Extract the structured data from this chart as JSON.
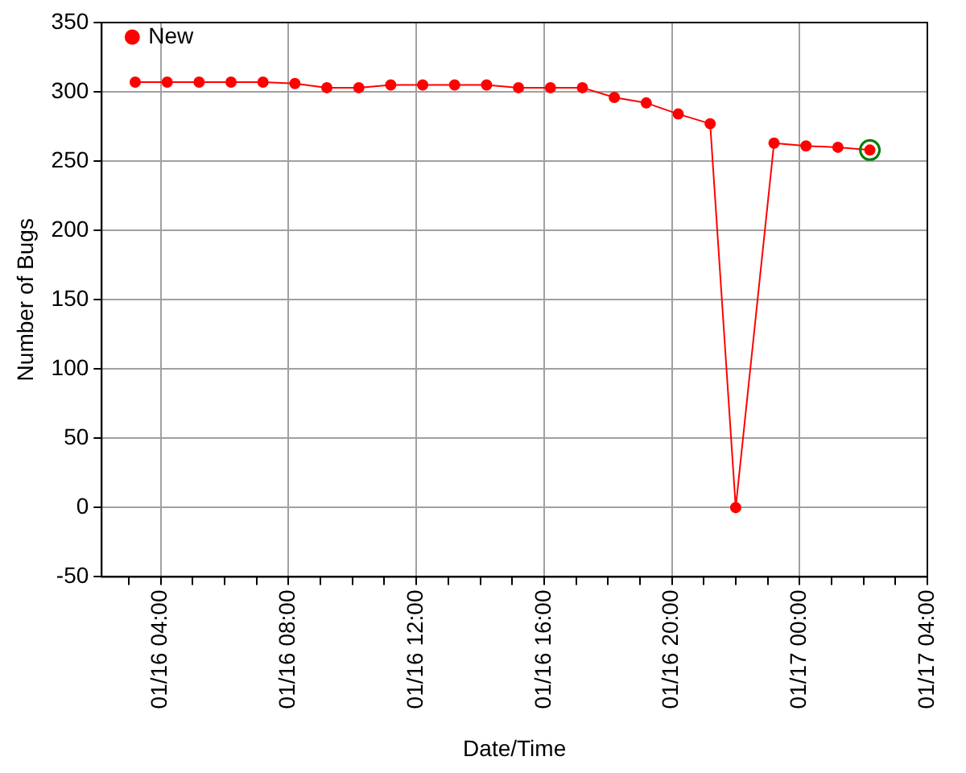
{
  "chart_data": {
    "type": "line",
    "xlabel": "Date/Time",
    "ylabel": "Number of Bugs",
    "series": [
      {
        "name": "New",
        "color": "#ff0000",
        "x": [
          "--01-16T03:12",
          "--01-16T04:12",
          "--01-16T05:12",
          "--01-16T06:12",
          "--01-16T07:12",
          "--01-16T08:12",
          "--01-16T09:12",
          "--01-16T10:12",
          "--01-16T11:12",
          "--01-16T12:12",
          "--01-16T13:12",
          "--01-16T14:12",
          "--01-16T15:12",
          "--01-16T16:12",
          "--01-16T17:12",
          "--01-16T18:12",
          "--01-16T19:12",
          "--01-16T20:12",
          "--01-16T21:12",
          "--01-16T22:00",
          "--01-16T23:12",
          "--01-17T00:12",
          "--01-17T01:12",
          "--01-17T02:12"
        ],
        "values": [
          307,
          307,
          307,
          307,
          307,
          306,
          303,
          303,
          305,
          305,
          305,
          305,
          303,
          303,
          303,
          296,
          292,
          284,
          277,
          0,
          263,
          261,
          260,
          258
        ]
      },
      {
        "type": "scatter",
        "color": "#008000",
        "marker": "circle",
        "x": [
          "--01-17T02:12"
        ],
        "values": [
          258
        ]
      }
    ],
    "xlim": [
      "--01-16T02:09",
      "--01-17T04:00"
    ],
    "xticks": [
      {
        "value": "--01-16T03:00",
        "label": null
      },
      {
        "value": "--01-16T04:00",
        "label": "01/16 04:00"
      },
      {
        "value": "--01-16T05:00",
        "label": null
      },
      {
        "value": "--01-16T06:00",
        "label": null
      },
      {
        "value": "--01-16T07:00",
        "label": null
      },
      {
        "value": "--01-16T08:00",
        "label": "01/16 08:00"
      },
      {
        "value": "--01-16T09:00",
        "label": null
      },
      {
        "value": "--01-16T10:00",
        "label": null
      },
      {
        "value": "--01-16T11:00",
        "label": null
      },
      {
        "value": "--01-16T12:00",
        "label": "01/16 12:00"
      },
      {
        "value": "--01-16T13:00",
        "label": null
      },
      {
        "value": "--01-16T14:00",
        "label": null
      },
      {
        "value": "--01-16T15:00",
        "label": null
      },
      {
        "value": "--01-16T16:00",
        "label": "01/16 16:00"
      },
      {
        "value": "--01-16T17:00",
        "label": null
      },
      {
        "value": "--01-16T18:00",
        "label": null
      },
      {
        "value": "--01-16T19:00",
        "label": null
      },
      {
        "value": "--01-16T20:00",
        "label": "01/16 20:00"
      },
      {
        "value": "--01-16T21:00",
        "label": null
      },
      {
        "value": "--01-16T22:00",
        "label": null
      },
      {
        "value": "--01-16T23:00",
        "label": null
      },
      {
        "value": "--01-17T00:00",
        "label": "01/17 00:00"
      },
      {
        "value": "--01-17T01:00",
        "label": null
      },
      {
        "value": "--01-17T02:00",
        "label": null
      },
      {
        "value": "--01-17T03:00",
        "label": null
      },
      {
        "value": "--01-17T04:00",
        "label": "01/17 04:00"
      }
    ],
    "ylim": [
      -50,
      350
    ],
    "yticks": [
      -50,
      0,
      50,
      100,
      150,
      200,
      250,
      300,
      350
    ],
    "grid": true,
    "legend": "top left",
    "marker": "circle",
    "line_style": "solid"
  }
}
